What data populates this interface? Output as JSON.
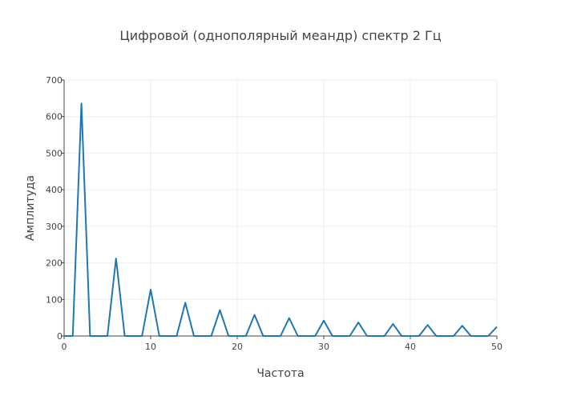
{
  "chart_data": {
    "type": "line",
    "title": "Цифровой (однополярный меандр) спектр  2 Гц",
    "xlabel": "Частота",
    "ylabel": "Амплитуда",
    "xlim": [
      0,
      50
    ],
    "ylim": [
      0,
      700
    ],
    "x_ticks": [
      0,
      10,
      20,
      30,
      40,
      50
    ],
    "y_ticks": [
      0,
      100,
      200,
      300,
      400,
      500,
      600,
      700
    ],
    "grid": true,
    "legend": "none",
    "colors": {
      "series": "#1f77b4",
      "grid": "#eeeeee",
      "axis": "#444444",
      "text": "#444444"
    },
    "series": [
      {
        "x": [
          0,
          1,
          2,
          3,
          4,
          5,
          6,
          7,
          8,
          9,
          10,
          11,
          12,
          13,
          14,
          15,
          16,
          17,
          18,
          19,
          20,
          21,
          22,
          23,
          24,
          25,
          26,
          27,
          28,
          29,
          30,
          31,
          32,
          33,
          34,
          35,
          36,
          37,
          38,
          39,
          40,
          41,
          42,
          43,
          44,
          45,
          46,
          47,
          48,
          49,
          50
        ],
        "values": [
          0,
          0,
          636,
          0,
          0,
          0,
          212,
          0,
          0,
          0,
          127,
          0,
          0,
          0,
          91,
          0,
          0,
          0,
          71,
          0,
          0,
          0,
          58,
          0,
          0,
          0,
          49,
          0,
          0,
          0,
          42,
          0,
          0,
          0,
          37,
          0,
          0,
          0,
          33,
          0,
          0,
          0,
          30,
          0,
          0,
          0,
          28,
          0,
          0,
          0,
          25
        ]
      }
    ]
  }
}
